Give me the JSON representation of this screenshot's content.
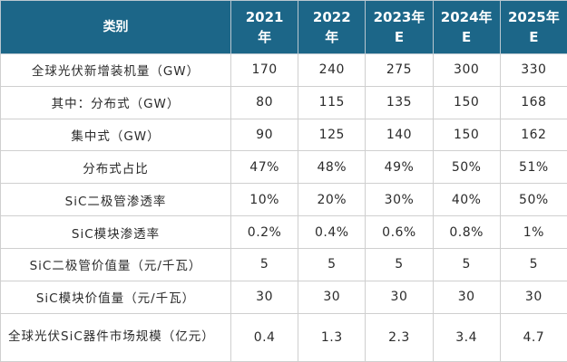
{
  "table": {
    "header": {
      "label": "类别",
      "years": [
        {
          "line1": "2021",
          "line2": "年"
        },
        {
          "line1": "2022",
          "line2": "年"
        },
        {
          "line1": "2023年",
          "line2": "E"
        },
        {
          "line1": "2024年",
          "line2": "E"
        },
        {
          "line1": "2025年",
          "line2": "E"
        }
      ]
    },
    "rows": [
      {
        "label": "全球光伏新增装机量（GW）",
        "values": [
          "170",
          "240",
          "275",
          "300",
          "330"
        ]
      },
      {
        "label": "其中：分布式（GW）",
        "values": [
          "80",
          "115",
          "135",
          "150",
          "168"
        ]
      },
      {
        "label": "集中式（GW）",
        "values": [
          "90",
          "125",
          "140",
          "150",
          "162"
        ]
      },
      {
        "label": "分布式占比",
        "values": [
          "47%",
          "48%",
          "49%",
          "50%",
          "51%"
        ]
      },
      {
        "label": "SiC二极管渗透率",
        "values": [
          "10%",
          "20%",
          "30%",
          "40%",
          "50%"
        ]
      },
      {
        "label": "SiC模块渗透率",
        "values": [
          "0.2%",
          "0.4%",
          "0.6%",
          "0.8%",
          "1%"
        ]
      },
      {
        "label": "SiC二极管价值量（元/千瓦）",
        "values": [
          "5",
          "5",
          "5",
          "5",
          "5"
        ]
      },
      {
        "label": "SiC模块价值量（元/千瓦）",
        "values": [
          "30",
          "30",
          "30",
          "30",
          "30"
        ]
      },
      {
        "label": "全球光伏SiC器件市场规模（亿元）",
        "values": [
          "0.4",
          "1.3",
          "2.3",
          "3.4",
          "4.7"
        ]
      }
    ]
  },
  "colors": {
    "header_background": "#1c6688",
    "header_text": "#ffffff",
    "grid_line": "#cfcfcf",
    "body_text": "#2b2b2b"
  }
}
